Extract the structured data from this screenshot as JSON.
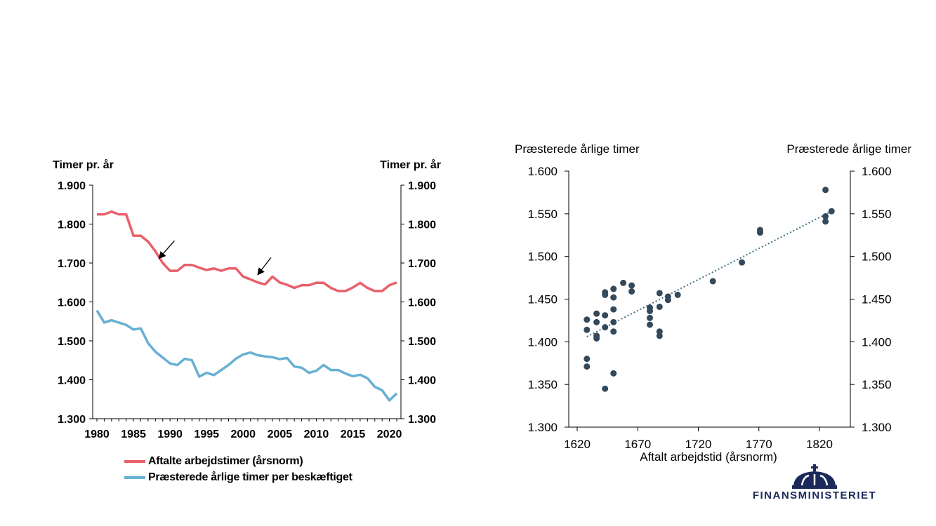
{
  "colors": {
    "red": "#e8606a",
    "blue": "#67b0d3",
    "dots": "#34495a",
    "trend": "#3f6f88",
    "logo": "#1b2a5a"
  },
  "chart_data": [
    {
      "type": "line",
      "ylabel_left": "Timer pr. år",
      "ylabel_right": "Timer pr. år",
      "ylim": [
        1300,
        1900
      ],
      "yticks": [
        "1.300",
        "1.400",
        "1.500",
        "1.600",
        "1.700",
        "1.800",
        "1.900"
      ],
      "xlim": [
        1980,
        2021
      ],
      "xticks": [
        "1980",
        "1985",
        "1990",
        "1995",
        "2000",
        "2005",
        "2010",
        "2015",
        "2020"
      ],
      "x": [
        1980,
        1981,
        1982,
        1983,
        1984,
        1985,
        1986,
        1987,
        1988,
        1989,
        1990,
        1991,
        1992,
        1993,
        1994,
        1995,
        1996,
        1997,
        1998,
        1999,
        2000,
        2001,
        2002,
        2003,
        2004,
        2005,
        2006,
        2007,
        2008,
        2009,
        2010,
        2011,
        2012,
        2013,
        2014,
        2015,
        2016,
        2017,
        2018,
        2019,
        2020,
        2021
      ],
      "series": [
        {
          "name": "Aftalte arbejdstimer (årsnorm)",
          "color": "#e8606a",
          "values": [
            1825,
            1825,
            1832,
            1825,
            1825,
            1770,
            1770,
            1755,
            1730,
            1700,
            1680,
            1680,
            1695,
            1695,
            1688,
            1682,
            1686,
            1680,
            1686,
            1686,
            1665,
            1658,
            1650,
            1645,
            1665,
            1650,
            1644,
            1636,
            1643,
            1643,
            1649,
            1649,
            1636,
            1628,
            1628,
            1637,
            1649,
            1636,
            1628,
            1628,
            1643,
            1650
          ]
        },
        {
          "name": "Præsterede årlige timer per beskæftiget",
          "color": "#67b0d3",
          "values": [
            1578,
            1547,
            1553,
            1547,
            1541,
            1529,
            1532,
            1494,
            1472,
            1457,
            1442,
            1438,
            1454,
            1450,
            1408,
            1418,
            1412,
            1425,
            1438,
            1454,
            1465,
            1470,
            1463,
            1460,
            1458,
            1453,
            1456,
            1434,
            1431,
            1418,
            1423,
            1438,
            1425,
            1425,
            1416,
            1409,
            1413,
            1404,
            1382,
            1373,
            1347,
            1365
          ]
        }
      ],
      "arrows": [
        {
          "from": [
            1990.6,
            1757
          ],
          "to": [
            1988.5,
            1712
          ]
        },
        {
          "from": [
            2003.8,
            1714
          ],
          "to": [
            2002.0,
            1670
          ]
        }
      ]
    },
    {
      "type": "scatter",
      "title_left": "Præsterede årlige timer",
      "title_right": "Præsterede årlige timer",
      "xlabel": "Aftalt arbejdstid (årsnorm)",
      "xlim": [
        1620,
        1850
      ],
      "ylim": [
        1300,
        1600
      ],
      "xticks": [
        "1620",
        "1670",
        "1720",
        "1770",
        "1820"
      ],
      "yticks": [
        "1.300",
        "1.350",
        "1.400",
        "1.450",
        "1.500",
        "1.550",
        "1.600"
      ],
      "trendline": {
        "from": [
          1628,
          1406
        ],
        "to": [
          1830,
          1553
        ]
      },
      "points": [
        [
          1628,
          1426
        ],
        [
          1628,
          1414
        ],
        [
          1628,
          1380
        ],
        [
          1628,
          1371
        ],
        [
          1636,
          1433
        ],
        [
          1636,
          1423
        ],
        [
          1636,
          1407
        ],
        [
          1636,
          1404
        ],
        [
          1643,
          1458
        ],
        [
          1643,
          1455
        ],
        [
          1643,
          1431
        ],
        [
          1643,
          1417
        ],
        [
          1643,
          1345
        ],
        [
          1650,
          1462
        ],
        [
          1650,
          1452
        ],
        [
          1650,
          1438
        ],
        [
          1650,
          1423
        ],
        [
          1650,
          1412
        ],
        [
          1650,
          1363
        ],
        [
          1658,
          1469
        ],
        [
          1665,
          1466
        ],
        [
          1665,
          1459
        ],
        [
          1680,
          1440
        ],
        [
          1680,
          1436
        ],
        [
          1680,
          1428
        ],
        [
          1680,
          1420
        ],
        [
          1688,
          1457
        ],
        [
          1688,
          1441
        ],
        [
          1688,
          1412
        ],
        [
          1688,
          1407
        ],
        [
          1695,
          1453
        ],
        [
          1695,
          1449
        ],
        [
          1703,
          1455
        ],
        [
          1732,
          1471
        ],
        [
          1756,
          1493
        ],
        [
          1771,
          1531
        ],
        [
          1771,
          1528
        ],
        [
          1825,
          1578
        ],
        [
          1825,
          1547
        ],
        [
          1825,
          1541
        ],
        [
          1830,
          1553
        ]
      ]
    }
  ],
  "legend": [
    {
      "label": "Aftalte arbejdstimer (årsnorm)",
      "color": "#e8606a"
    },
    {
      "label": "Præsterede årlige timer per beskæftiget",
      "color": "#67b0d3"
    }
  ],
  "logo": {
    "text": "FINANSMINISTERIET",
    "icon": "crown-icon"
  }
}
